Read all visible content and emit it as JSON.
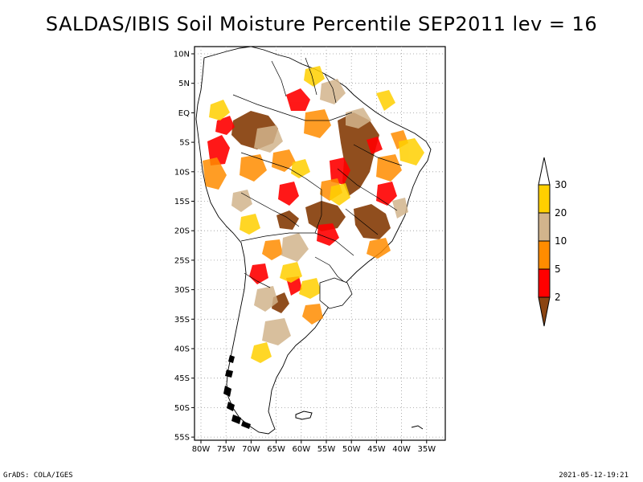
{
  "title": "SALDAS/IBIS Soil Moisture Percentile SEP2011 lev = 16",
  "map": {
    "lon_ticks": [
      "80W",
      "75W",
      "70W",
      "65W",
      "60W",
      "55W",
      "50W",
      "45W",
      "40W",
      "35W"
    ],
    "lat_ticks": [
      "10N",
      "5N",
      "EQ",
      "5S",
      "10S",
      "15S",
      "20S",
      "25S",
      "30S",
      "35S",
      "40S",
      "45S",
      "50S",
      "55S"
    ]
  },
  "legend": {
    "labels": [
      "30",
      "20",
      "10",
      "5",
      "2"
    ],
    "colors": {
      "above_30": "#ffffff",
      "20_30": "#ffd000",
      "10_20": "#d2b48c",
      "5_10": "#ff8c00",
      "2_5": "#ff0000",
      "below_2": "#8b4513"
    }
  },
  "footer": {
    "left": "GrADS: COLA/IGES",
    "right": "2021-05-12-19:21"
  }
}
